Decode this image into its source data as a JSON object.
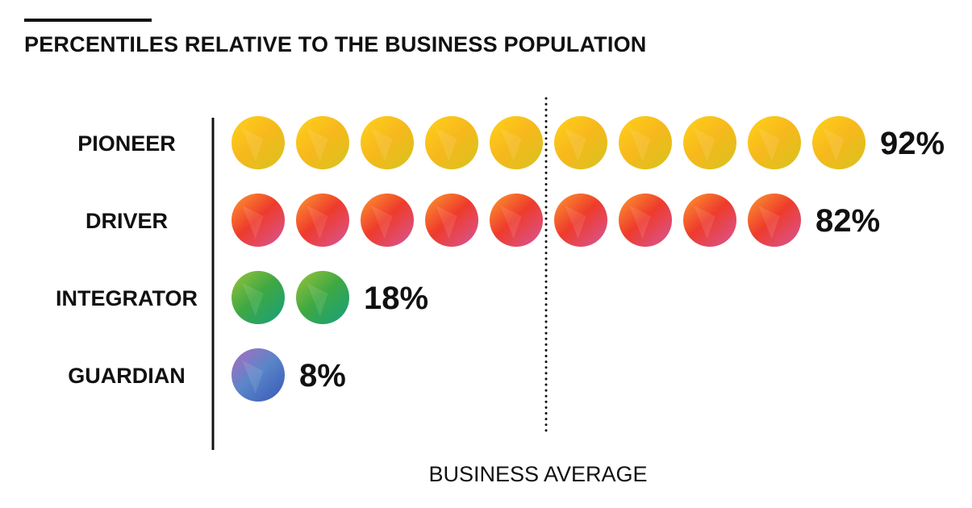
{
  "header": {
    "title": "PERCENTILES RELATIVE TO THE BUSINESS POPULATION"
  },
  "chart_data": {
    "type": "bar",
    "title": "PERCENTILES RELATIVE TO THE BUSINESS POPULATION",
    "unit_note": "each circle represents 10 percentile points; values rounded up to whole circles",
    "categories": [
      "PIONEER",
      "DRIVER",
      "INTEGRATOR",
      "GUARDIAN"
    ],
    "values": [
      92,
      82,
      18,
      8
    ],
    "value_labels": [
      "92%",
      "82%",
      "18%",
      "8%"
    ],
    "circles": [
      10,
      9,
      2,
      1
    ],
    "xlim": [
      0,
      100
    ],
    "reference_line": {
      "label": "BUSINESS AVERAGE",
      "value": 50,
      "style": "dotted"
    },
    "grid": false,
    "legend": "none",
    "colors": {
      "PIONEER": {
        "light": "#ffd21a",
        "mid": "#f7b81c",
        "dark": "#d9c21e"
      },
      "DRIVER": {
        "light": "#ff9a2e",
        "mid": "#ee3b2c",
        "dark": "#d9558f"
      },
      "INTEGRATOR": {
        "light": "#9cc43a",
        "mid": "#3ea843",
        "dark": "#1aa07a"
      },
      "GUARDIAN": {
        "light": "#b06ac0",
        "mid": "#5a86c8",
        "dark": "#3a5bb8"
      }
    }
  }
}
